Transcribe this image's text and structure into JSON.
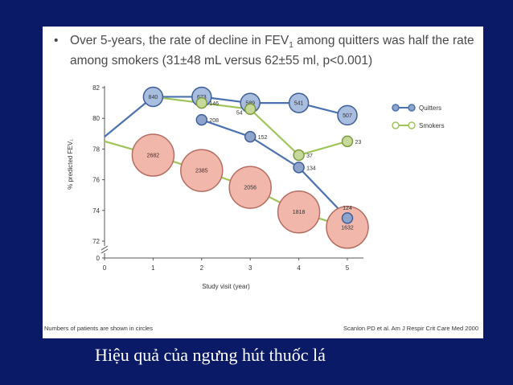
{
  "bullet": {
    "marker": "•",
    "text_part1": "Over 5-years, the rate of decline in FEV",
    "sub": "1",
    "text_part2": " among quitters was half the rate among smokers (31±48 mL versus 62±55 ml, p<0.001)"
  },
  "chart_data": {
    "type": "scatter",
    "title": "",
    "xlabel": "Study visit (year)",
    "ylabel": "% predicted FEV₁",
    "x_ticks": [
      "0",
      "1",
      "2",
      "3",
      "4",
      "5"
    ],
    "y_ticks": [
      "0",
      "72",
      "74",
      "76",
      "78",
      "80",
      "82"
    ],
    "ylim_visible": [
      72,
      82
    ],
    "axis_break": true,
    "legend_position": "top-right",
    "series": [
      {
        "name": "Quitters",
        "color": "#4a72b0",
        "points": [
          {
            "x": 0,
            "y": 78.8
          },
          {
            "x": 1,
            "y": 81.4,
            "n": "840"
          },
          {
            "x": 2,
            "y": 81.4,
            "n": "673"
          },
          {
            "x": 3,
            "y": 81.0,
            "n": "589"
          },
          {
            "x": 4,
            "y": 81.0,
            "n": "541"
          },
          {
            "x": 5,
            "y": 80.2,
            "n": "507"
          }
        ]
      },
      {
        "name": "Smokers",
        "color": "#9ec45a",
        "points": [
          {
            "x": 1,
            "y": 81.4
          },
          {
            "x": 2,
            "y": 81.0,
            "n": "146"
          },
          {
            "x": 3,
            "y": 80.6,
            "n": "54"
          },
          {
            "x": 4,
            "y": 77.6,
            "n": "37"
          },
          {
            "x": 5,
            "y": 78.5,
            "n": "23"
          }
        ]
      },
      {
        "name": "",
        "color": "#9ec45a",
        "points": [
          {
            "x": 0,
            "y": 78.5
          },
          {
            "x": 1,
            "y": 77.6,
            "n": "2682"
          },
          {
            "x": 2,
            "y": 76.6,
            "n": "2385"
          },
          {
            "x": 3,
            "y": 75.5,
            "n": "2056"
          },
          {
            "x": 4,
            "y": 73.9,
            "n": "1818"
          },
          {
            "x": 5,
            "y": 72.9,
            "n": "1632"
          }
        ]
      },
      {
        "name": "",
        "color": "#4a72b0",
        "points": [
          {
            "x": 2,
            "y": 79.9,
            "n": "208"
          },
          {
            "x": 3,
            "y": 78.8,
            "n": "152"
          },
          {
            "x": 4,
            "y": 76.8,
            "n": "134"
          },
          {
            "x": 5,
            "y": 73.5,
            "n": "124"
          }
        ]
      }
    ]
  },
  "footnotes": {
    "left": "Numbers of patients are shown in circles",
    "right": "Scanlon PD et al. Am J Respir Crit Care Med 2000"
  },
  "caption": "Hiệu quả của ngưng hút thuốc lá",
  "colors": {
    "background": "#0b1a66",
    "quitter_circle_fill": "#a9bddf",
    "smoker_circle_fill": "#f2b7ab"
  }
}
